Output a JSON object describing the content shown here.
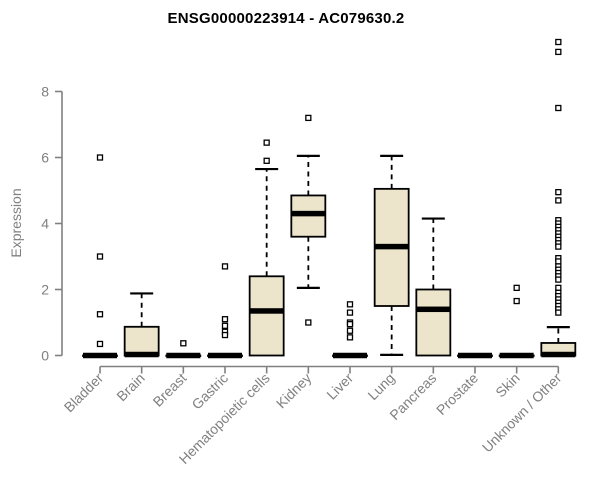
{
  "page": {
    "background": "#ffffff"
  },
  "chart_data": {
    "type": "boxplot",
    "title": "ENSG00000223914 - AC079630.2",
    "ylabel": "Expression",
    "xlabel": "",
    "ylim": [
      0,
      9.6
    ],
    "yticks": [
      0,
      2,
      4,
      6,
      8
    ],
    "grid": false,
    "legend": false,
    "box_fill": "#ece5cb",
    "box_stroke": "#000000",
    "median_color": "#000000",
    "outlier_fill": "#ffffff",
    "axis_color": "#808080",
    "categories": [
      "Bladder",
      "Brain",
      "Breast",
      "Gastric",
      "Hematopoietic cells",
      "Kidney",
      "Liver",
      "Lung",
      "Pancreas",
      "Prostate",
      "Skin",
      "Unknown / Other"
    ],
    "series": [
      {
        "name": "Bladder",
        "q1": 0,
        "median": 0,
        "q3": 0,
        "whisker_low": 0,
        "whisker_high": 0,
        "outliers": [
          6.0,
          3.0,
          1.25,
          0.35
        ]
      },
      {
        "name": "Brain",
        "q1": 0,
        "median": 0.03,
        "q3": 0.87,
        "whisker_low": 0,
        "whisker_high": 1.88,
        "outliers": []
      },
      {
        "name": "Breast",
        "q1": 0,
        "median": 0,
        "q3": 0,
        "whisker_low": 0,
        "whisker_high": 0,
        "outliers": [
          0.37
        ]
      },
      {
        "name": "Gastric",
        "q1": 0,
        "median": 0,
        "q3": 0,
        "whisker_low": 0,
        "whisker_high": 0,
        "outliers": [
          2.7,
          1.1,
          0.9,
          0.72,
          0.62
        ]
      },
      {
        "name": "Hematopoietic cells",
        "q1": 0,
        "median": 1.35,
        "q3": 2.4,
        "whisker_low": 0,
        "whisker_high": 5.65,
        "outliers": [
          6.45,
          5.9
        ]
      },
      {
        "name": "Kidney",
        "q1": 3.6,
        "median": 4.3,
        "q3": 4.85,
        "whisker_low": 2.05,
        "whisker_high": 6.05,
        "outliers": [
          7.2,
          1.0
        ]
      },
      {
        "name": "Liver",
        "q1": 0,
        "median": 0,
        "q3": 0,
        "whisker_low": 0,
        "whisker_high": 0,
        "outliers": [
          1.55,
          1.3,
          1.0,
          0.95,
          0.75,
          0.55
        ]
      },
      {
        "name": "Lung",
        "q1": 1.5,
        "median": 3.3,
        "q3": 5.05,
        "whisker_low": 0.02,
        "whisker_high": 6.05,
        "outliers": []
      },
      {
        "name": "Pancreas",
        "q1": 0,
        "median": 1.4,
        "q3": 2.0,
        "whisker_low": 0,
        "whisker_high": 4.15,
        "outliers": []
      },
      {
        "name": "Prostate",
        "q1": 0,
        "median": 0,
        "q3": 0,
        "whisker_low": 0,
        "whisker_high": 0,
        "outliers": []
      },
      {
        "name": "Skin",
        "q1": 0,
        "median": 0,
        "q3": 0,
        "whisker_low": 0,
        "whisker_high": 0,
        "outliers": [
          2.05,
          1.65
        ]
      },
      {
        "name": "Unknown / Other",
        "q1": 0,
        "median": 0.03,
        "q3": 0.38,
        "whisker_low": 0,
        "whisker_high": 0.86,
        "outliers": [
          9.5,
          9.2,
          7.5,
          4.95,
          4.7,
          4.1,
          4.0,
          3.9,
          3.8,
          3.7,
          3.6,
          3.5,
          3.4,
          3.3,
          2.95,
          2.85,
          2.7,
          2.6,
          2.5,
          2.4,
          2.3,
          2.05,
          1.9,
          1.8,
          1.7,
          1.6,
          1.5,
          1.4,
          1.3
        ]
      }
    ]
  }
}
